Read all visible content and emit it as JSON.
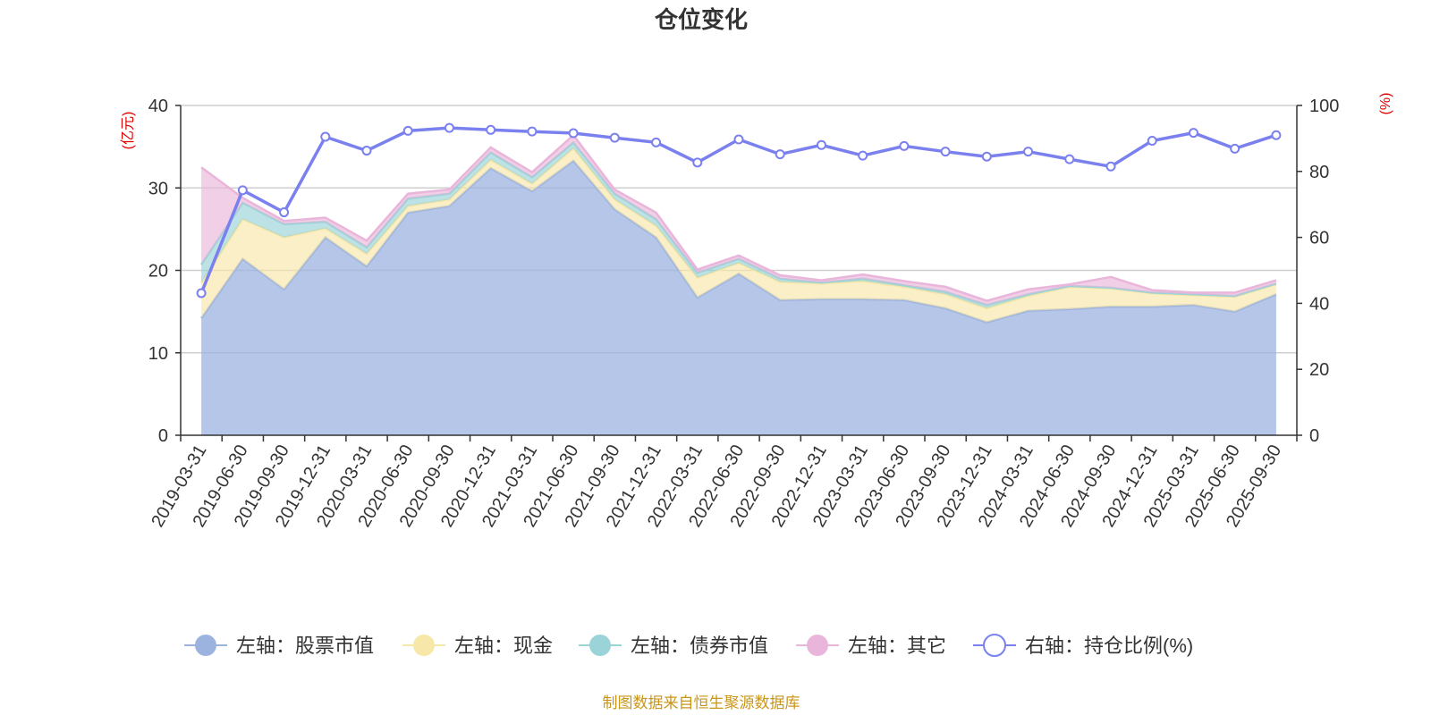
{
  "chart_data": {
    "type": "area",
    "title": "仓位变化",
    "source": "制图数据来自恒生聚源数据库",
    "left_axis": {
      "unit": "(亿元)",
      "ylim": [
        0,
        40
      ],
      "ticks": [
        0,
        10,
        20,
        30,
        40
      ]
    },
    "right_axis": {
      "unit": "(%)",
      "ylim": [
        0,
        100
      ],
      "ticks": [
        0,
        20,
        40,
        60,
        80,
        100
      ]
    },
    "categories": [
      "2019-03-31",
      "2019-06-30",
      "2019-09-30",
      "2019-12-31",
      "2020-03-31",
      "2020-06-30",
      "2020-09-30",
      "2020-12-31",
      "2021-03-31",
      "2021-06-30",
      "2021-09-30",
      "2021-12-31",
      "2022-03-31",
      "2022-06-30",
      "2022-09-30",
      "2022-12-31",
      "2023-03-31",
      "2023-06-30",
      "2023-09-30",
      "2023-12-31",
      "2024-03-31",
      "2024-06-30",
      "2024-09-30",
      "2024-12-31",
      "2025-03-31",
      "2025-06-30",
      "2025-09-30"
    ],
    "series": [
      {
        "name": "左轴：股票市值",
        "axis": "left",
        "color": "#9cb3e0",
        "values": [
          14.2,
          21.4,
          17.7,
          24.0,
          20.5,
          27.0,
          27.8,
          32.4,
          29.6,
          33.3,
          27.4,
          24.0,
          16.7,
          19.6,
          16.4,
          16.5,
          16.5,
          16.4,
          15.4,
          13.7,
          15.1,
          15.3,
          15.6,
          15.6,
          15.8,
          15.0,
          17.1
        ]
      },
      {
        "name": "左轴：现金",
        "axis": "left",
        "color": "#f7e7a8",
        "values": [
          4.3,
          4.8,
          6.3,
          1.1,
          1.5,
          0.8,
          0.8,
          1.0,
          0.9,
          1.5,
          1.2,
          1.4,
          2.4,
          1.3,
          2.2,
          1.9,
          2.2,
          1.6,
          1.7,
          1.7,
          1.8,
          2.7,
          2.2,
          1.6,
          1.2,
          1.8,
          1.2
        ]
      },
      {
        "name": "左轴：债券市值",
        "axis": "left",
        "color": "#9ad3d8",
        "values": [
          2.2,
          2.0,
          1.6,
          0.8,
          0.8,
          0.9,
          0.7,
          0.9,
          0.8,
          0.7,
          0.7,
          0.8,
          0.6,
          0.5,
          0.4,
          0.1,
          0.3,
          0.2,
          0.3,
          0.4,
          0.2,
          0.1,
          0.1,
          0.1,
          0.1,
          0.1,
          0.1
        ]
      },
      {
        "name": "左轴：其它",
        "axis": "left",
        "color": "#eab5da",
        "values": [
          11.8,
          0.6,
          0.4,
          0.5,
          0.8,
          0.6,
          0.5,
          0.6,
          0.6,
          0.9,
          0.5,
          0.8,
          0.4,
          0.4,
          0.4,
          0.3,
          0.5,
          0.5,
          0.6,
          0.5,
          0.6,
          0.2,
          1.3,
          0.3,
          0.2,
          0.4,
          0.4
        ]
      },
      {
        "name": "右轴：持仓比例(%)",
        "axis": "right",
        "color": "#7a80ee",
        "values": [
          43.1,
          74.3,
          67.6,
          90.5,
          86.3,
          92.3,
          93.2,
          92.6,
          92.1,
          91.6,
          90.2,
          88.8,
          82.7,
          89.7,
          85.2,
          88.0,
          84.8,
          87.7,
          86.0,
          84.5,
          86.0,
          83.7,
          81.5,
          89.3,
          91.7,
          86.9,
          91.0
        ]
      }
    ],
    "grid": true,
    "legend_position": "bottom"
  }
}
